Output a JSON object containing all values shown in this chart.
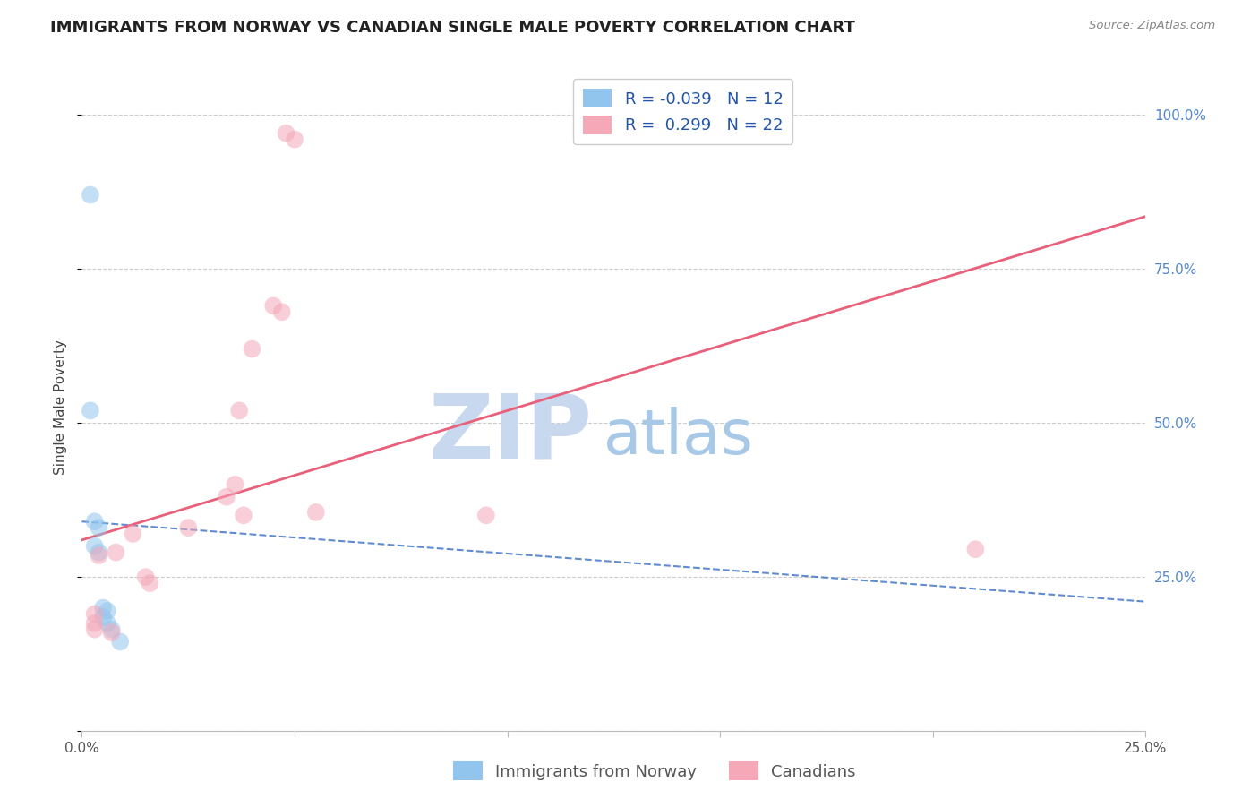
{
  "title": "IMMIGRANTS FROM NORWAY VS CANADIAN SINGLE MALE POVERTY CORRELATION CHART",
  "source": "Source: ZipAtlas.com",
  "ylabel": "Single Male Poverty",
  "watermark_zip": "ZIP",
  "watermark_atlas": "atlas",
  "xlim": [
    0.0,
    0.25
  ],
  "ylim": [
    0.0,
    1.05
  ],
  "yticks": [
    0.0,
    0.25,
    0.5,
    0.75,
    1.0
  ],
  "ytick_labels": [
    "",
    "25.0%",
    "50.0%",
    "75.0%",
    "100.0%"
  ],
  "xticks": [
    0.0,
    0.05,
    0.1,
    0.15,
    0.2,
    0.25
  ],
  "xtick_labels": [
    "0.0%",
    "",
    "",
    "",
    "",
    "25.0%"
  ],
  "blue_scatter_x": [
    0.002,
    0.002,
    0.003,
    0.003,
    0.004,
    0.004,
    0.005,
    0.005,
    0.006,
    0.006,
    0.007,
    0.009
  ],
  "blue_scatter_y": [
    0.87,
    0.52,
    0.34,
    0.3,
    0.33,
    0.29,
    0.2,
    0.185,
    0.195,
    0.175,
    0.165,
    0.145
  ],
  "pink_scatter_x": [
    0.048,
    0.05,
    0.045,
    0.047,
    0.04,
    0.037,
    0.036,
    0.034,
    0.025,
    0.012,
    0.008,
    0.004,
    0.003,
    0.003,
    0.003,
    0.007,
    0.015,
    0.016,
    0.21,
    0.055,
    0.095,
    0.038
  ],
  "pink_scatter_y": [
    0.97,
    0.96,
    0.69,
    0.68,
    0.62,
    0.52,
    0.4,
    0.38,
    0.33,
    0.32,
    0.29,
    0.285,
    0.19,
    0.175,
    0.165,
    0.16,
    0.25,
    0.24,
    0.295,
    0.355,
    0.35,
    0.35
  ],
  "blue_R": -0.039,
  "blue_N": 12,
  "pink_R": 0.299,
  "pink_N": 22,
  "blue_color": "#92C5EE",
  "pink_color": "#F4A8B8",
  "blue_line_color": "#4477CC",
  "pink_line_color": "#E8607A",
  "scatter_size": 200,
  "scatter_alpha": 0.55,
  "title_fontsize": 13,
  "axis_label_fontsize": 11,
  "tick_fontsize": 11,
  "legend_fontsize": 13,
  "watermark_color_zip": "#C8D8EE",
  "watermark_color_atlas": "#A8C8E8",
  "watermark_fontsize": 72,
  "right_tick_color": "#5588CC",
  "bottom_label": "Immigrants from Norway",
  "bottom_label2": "Canadians",
  "grid_color": "#CCCCCC",
  "background_color": "#FFFFFF",
  "blue_line_intercept": 0.34,
  "blue_line_slope": -0.52,
  "pink_line_intercept": 0.31,
  "pink_line_slope": 2.1
}
